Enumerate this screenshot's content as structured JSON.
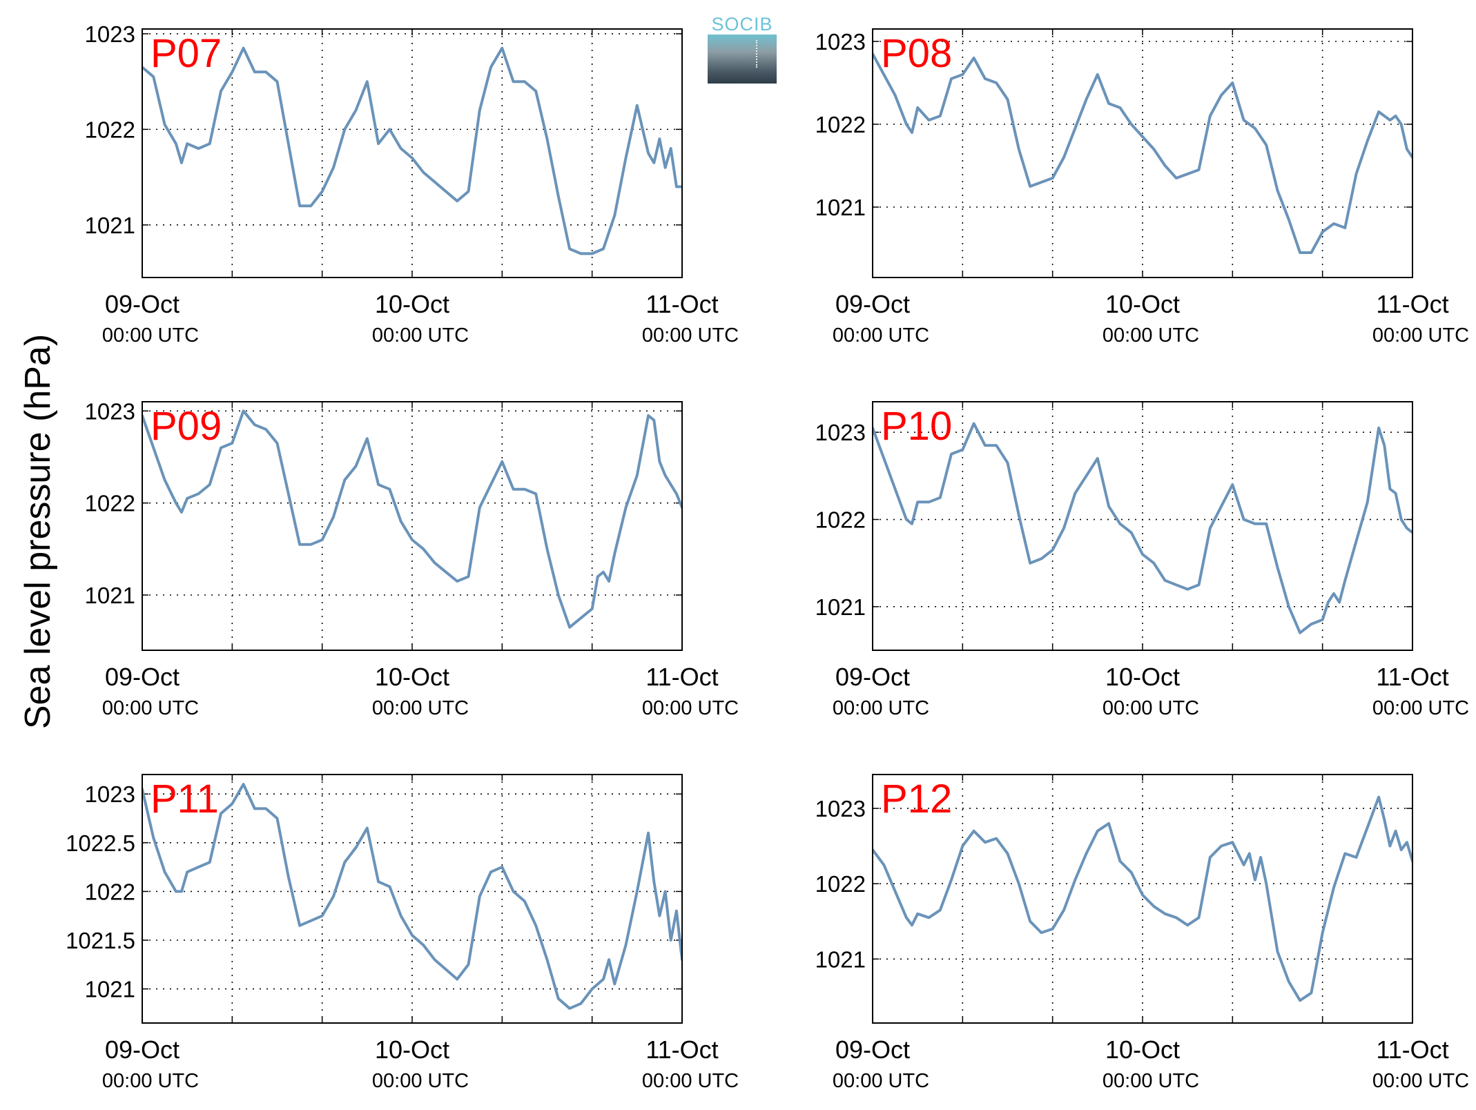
{
  "ylabel": "Sea level pressure (hPa)",
  "logo": {
    "text": "SOCIB",
    "icon": "socib-logo-icon"
  },
  "style": {
    "line_color": "#6a93b9",
    "label_color": "#ff0000",
    "grid": true
  },
  "x_ticks": [
    {
      "t": 0,
      "date": "09-Oct",
      "time": "00:00 UTC"
    },
    {
      "t": 24,
      "date": "10-Oct",
      "time": "00:00 UTC"
    },
    {
      "t": 48,
      "date": "11-Oct",
      "time": "00:00 UTC"
    }
  ],
  "chart_data": [
    {
      "type": "line",
      "label": "P07",
      "xlim": [
        "09-Oct 00:00",
        "11-Oct 00:00"
      ],
      "ylim": [
        1020.45,
        1023.05
      ],
      "yticks": [
        1021,
        1022,
        1023
      ],
      "ytick_labels": [
        "1021",
        "1022",
        "1023"
      ],
      "series": [
        {
          "x_hours": [
            0,
            1,
            2,
            3,
            3.5,
            4,
            5,
            6,
            7,
            8,
            9,
            10,
            11,
            12,
            13,
            14,
            15,
            16,
            17,
            18,
            19,
            20,
            21,
            22,
            23,
            24,
            25,
            26,
            27,
            28,
            29,
            30,
            31,
            32,
            33,
            34,
            35,
            36,
            37,
            38,
            39,
            40,
            41,
            42,
            43,
            44,
            45,
            45.5,
            46,
            46.5,
            47,
            47.5,
            48
          ],
          "values": [
            1022.65,
            1022.55,
            1022.05,
            1021.85,
            1021.65,
            1021.85,
            1021.8,
            1021.85,
            1022.4,
            1022.6,
            1022.85,
            1022.6,
            1022.6,
            1022.5,
            1021.85,
            1021.2,
            1021.2,
            1021.35,
            1021.6,
            1022.0,
            1022.2,
            1022.5,
            1021.85,
            1022.0,
            1021.8,
            1021.7,
            1021.55,
            1021.45,
            1021.35,
            1021.25,
            1021.35,
            1022.2,
            1022.65,
            1022.85,
            1022.5,
            1022.5,
            1022.4,
            1021.9,
            1021.3,
            1020.75,
            1020.7,
            1020.7,
            1020.75,
            1021.1,
            1021.7,
            1022.25,
            1021.75,
            1021.65,
            1021.9,
            1021.6,
            1021.8,
            1021.4,
            1021.4
          ]
        }
      ]
    },
    {
      "type": "line",
      "label": "P08",
      "xlim": [
        "09-Oct 00:00",
        "11-Oct 00:00"
      ],
      "ylim": [
        1020.15,
        1023.15
      ],
      "yticks": [
        1021,
        1022,
        1023
      ],
      "ytick_labels": [
        "1021",
        "1022",
        "1023"
      ],
      "series": [
        {
          "x_hours": [
            0,
            1,
            2,
            3,
            3.5,
            4,
            5,
            6,
            7,
            8,
            9,
            10,
            11,
            12,
            13,
            14,
            15,
            16,
            17,
            18,
            19,
            20,
            21,
            22,
            23,
            24,
            25,
            26,
            27,
            28,
            29,
            30,
            31,
            32,
            33,
            34,
            35,
            36,
            37,
            38,
            39,
            40,
            41,
            42,
            43,
            44,
            45,
            46,
            46.5,
            47,
            47.5,
            48
          ],
          "values": [
            1022.85,
            1022.6,
            1022.35,
            1022.0,
            1021.9,
            1022.2,
            1022.05,
            1022.1,
            1022.55,
            1022.6,
            1022.8,
            1022.55,
            1022.5,
            1022.3,
            1021.7,
            1021.25,
            1021.3,
            1021.35,
            1021.6,
            1021.95,
            1022.3,
            1022.6,
            1022.25,
            1022.2,
            1022.0,
            1021.85,
            1021.7,
            1021.5,
            1021.35,
            1021.4,
            1021.45,
            1022.1,
            1022.35,
            1022.5,
            1022.05,
            1021.95,
            1021.75,
            1021.2,
            1020.85,
            1020.45,
            1020.45,
            1020.7,
            1020.8,
            1020.75,
            1021.4,
            1021.8,
            1022.15,
            1022.05,
            1022.1,
            1022.0,
            1021.7,
            1021.6
          ]
        }
      ]
    },
    {
      "type": "line",
      "label": "P09",
      "xlim": [
        "09-Oct 00:00",
        "11-Oct 00:00"
      ],
      "ylim": [
        1020.4,
        1023.1
      ],
      "yticks": [
        1021,
        1022,
        1023
      ],
      "ytick_labels": [
        "1021",
        "1022",
        "1023"
      ],
      "series": [
        {
          "x_hours": [
            0,
            1,
            2,
            3,
            3.5,
            4,
            5,
            6,
            7,
            8,
            9,
            10,
            11,
            12,
            13,
            14,
            15,
            16,
            17,
            18,
            19,
            20,
            21,
            22,
            23,
            24,
            25,
            26,
            27,
            28,
            29,
            30,
            31,
            32,
            33,
            34,
            35,
            36,
            37,
            38,
            39,
            40,
            40.5,
            41,
            41.5,
            42,
            43,
            44,
            45,
            45.5,
            46,
            46.5,
            47,
            47.5,
            48
          ],
          "values": [
            1022.95,
            1022.6,
            1022.25,
            1022.0,
            1021.9,
            1022.05,
            1022.1,
            1022.2,
            1022.6,
            1022.65,
            1023.0,
            1022.85,
            1022.8,
            1022.65,
            1022.1,
            1021.55,
            1021.55,
            1021.6,
            1021.85,
            1022.25,
            1022.4,
            1022.7,
            1022.2,
            1022.15,
            1021.8,
            1021.6,
            1021.5,
            1021.35,
            1021.25,
            1021.15,
            1021.2,
            1021.95,
            1022.2,
            1022.45,
            1022.15,
            1022.15,
            1022.1,
            1021.5,
            1021.0,
            1020.65,
            1020.75,
            1020.85,
            1021.2,
            1021.25,
            1021.15,
            1021.45,
            1021.95,
            1022.3,
            1022.95,
            1022.9,
            1022.45,
            1022.3,
            1022.2,
            1022.1,
            1021.95
          ]
        }
      ]
    },
    {
      "type": "line",
      "label": "P10",
      "xlim": [
        "09-Oct 00:00",
        "11-Oct 00:00"
      ],
      "ylim": [
        1020.5,
        1023.35
      ],
      "yticks": [
        1021,
        1022,
        1023
      ],
      "ytick_labels": [
        "1021",
        "1022",
        "1023"
      ],
      "series": [
        {
          "x_hours": [
            0,
            1,
            2,
            3,
            3.5,
            4,
            5,
            6,
            7,
            8,
            9,
            10,
            11,
            12,
            13,
            14,
            15,
            16,
            17,
            18,
            19,
            20,
            21,
            22,
            23,
            24,
            25,
            26,
            27,
            28,
            29,
            30,
            31,
            32,
            33,
            34,
            35,
            36,
            37,
            38,
            39,
            40,
            40.5,
            41,
            41.5,
            42,
            43,
            44,
            45,
            45.5,
            46,
            46.5,
            47,
            47.5,
            48
          ],
          "values": [
            1023.05,
            1022.7,
            1022.35,
            1022.0,
            1021.95,
            1022.2,
            1022.2,
            1022.25,
            1022.75,
            1022.8,
            1023.1,
            1022.85,
            1022.85,
            1022.65,
            1022.05,
            1021.5,
            1021.55,
            1021.65,
            1021.9,
            1022.3,
            1022.5,
            1022.7,
            1022.15,
            1021.95,
            1021.85,
            1021.6,
            1021.5,
            1021.3,
            1021.25,
            1021.2,
            1021.25,
            1021.9,
            1022.15,
            1022.4,
            1022.0,
            1021.95,
            1021.95,
            1021.45,
            1021.0,
            1020.7,
            1020.8,
            1020.85,
            1021.05,
            1021.15,
            1021.05,
            1021.3,
            1021.75,
            1022.2,
            1023.05,
            1022.85,
            1022.35,
            1022.3,
            1022.0,
            1021.9,
            1021.85
          ]
        }
      ]
    },
    {
      "type": "line",
      "label": "P11",
      "xlim": [
        "09-Oct 00:00",
        "11-Oct 00:00"
      ],
      "ylim": [
        1020.65,
        1023.2
      ],
      "yticks": [
        1021,
        1021.5,
        1022,
        1022.5,
        1023
      ],
      "ytick_labels": [
        "1021",
        "1021.5",
        "1022",
        "1022.5",
        "1023"
      ],
      "series": [
        {
          "x_hours": [
            0,
            1,
            2,
            3,
            3.5,
            4,
            5,
            6,
            7,
            8,
            9,
            10,
            11,
            12,
            13,
            14,
            15,
            16,
            17,
            18,
            19,
            20,
            21,
            22,
            23,
            24,
            25,
            26,
            27,
            28,
            29,
            30,
            31,
            32,
            33,
            34,
            35,
            36,
            37,
            38,
            39,
            40,
            41,
            41.5,
            42,
            43,
            44,
            45,
            45.5,
            46,
            46.5,
            47,
            47.5,
            48
          ],
          "values": [
            1023.05,
            1022.55,
            1022.2,
            1022.0,
            1022.0,
            1022.2,
            1022.25,
            1022.3,
            1022.8,
            1022.9,
            1023.1,
            1022.85,
            1022.85,
            1022.75,
            1022.15,
            1021.65,
            1021.7,
            1021.75,
            1021.95,
            1022.3,
            1022.45,
            1022.65,
            1022.1,
            1022.05,
            1021.75,
            1021.55,
            1021.45,
            1021.3,
            1021.2,
            1021.1,
            1021.25,
            1021.95,
            1022.2,
            1022.25,
            1022.0,
            1021.9,
            1021.65,
            1021.3,
            1020.9,
            1020.8,
            1020.85,
            1021.0,
            1021.1,
            1021.3,
            1021.05,
            1021.45,
            1022.0,
            1022.6,
            1022.1,
            1021.75,
            1022.0,
            1021.5,
            1021.8,
            1021.3
          ]
        }
      ]
    },
    {
      "type": "line",
      "label": "P12",
      "xlim": [
        "09-Oct 00:00",
        "11-Oct 00:00"
      ],
      "ylim": [
        1020.15,
        1023.45
      ],
      "yticks": [
        1021,
        1022,
        1023
      ],
      "ytick_labels": [
        "1021",
        "1022",
        "1023"
      ],
      "series": [
        {
          "x_hours": [
            0,
            1,
            2,
            3,
            3.5,
            4,
            5,
            6,
            7,
            8,
            9,
            10,
            11,
            12,
            13,
            14,
            15,
            16,
            17,
            18,
            19,
            20,
            21,
            22,
            23,
            24,
            25,
            26,
            27,
            28,
            29,
            30,
            31,
            32,
            33,
            33.5,
            34,
            34.5,
            35,
            36,
            37,
            38,
            39,
            40,
            41,
            42,
            43,
            44,
            45,
            45.5,
            46,
            46.5,
            47,
            47.5,
            48
          ],
          "values": [
            1022.45,
            1022.25,
            1021.9,
            1021.55,
            1021.45,
            1021.6,
            1021.55,
            1021.65,
            1022.05,
            1022.5,
            1022.7,
            1022.55,
            1022.6,
            1022.4,
            1022.0,
            1021.5,
            1021.35,
            1021.4,
            1021.65,
            1022.05,
            1022.4,
            1022.7,
            1022.8,
            1022.3,
            1022.15,
            1021.85,
            1021.7,
            1021.6,
            1021.55,
            1021.45,
            1021.55,
            1022.35,
            1022.5,
            1022.55,
            1022.25,
            1022.4,
            1022.05,
            1022.35,
            1022.0,
            1021.1,
            1020.7,
            1020.45,
            1020.55,
            1021.35,
            1021.95,
            1022.4,
            1022.35,
            1022.75,
            1023.15,
            1022.85,
            1022.5,
            1022.7,
            1022.45,
            1022.55,
            1022.3
          ]
        }
      ]
    }
  ]
}
